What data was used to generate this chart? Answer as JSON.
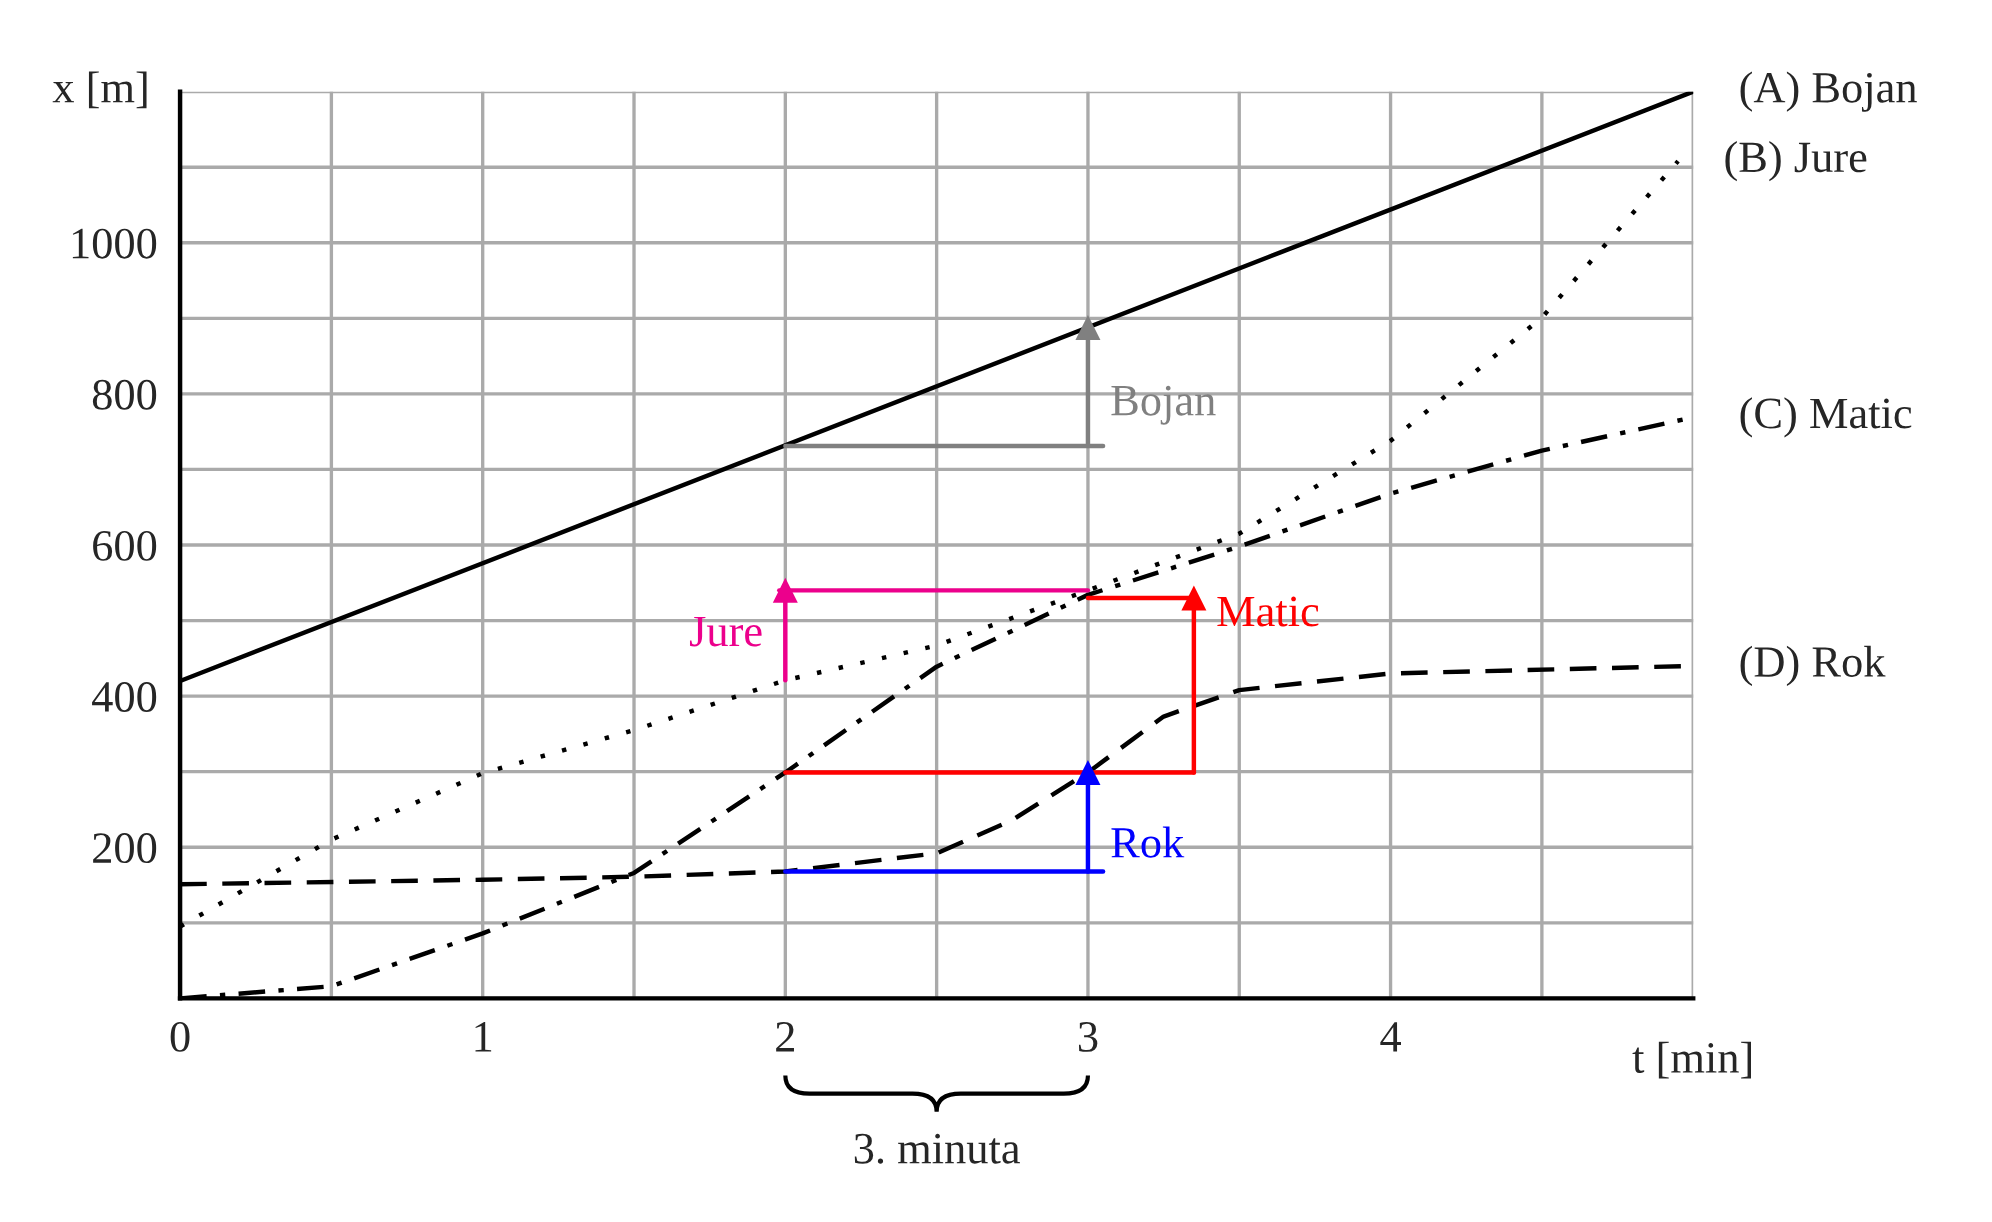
{
  "chart_data": {
    "type": "line",
    "xlabel": "t [min]",
    "ylabel": "x [m]",
    "xlim": [
      0,
      5
    ],
    "ylim": [
      0,
      1200
    ],
    "xticks": [
      0,
      {
        "value": 0.5,
        "label": null
      },
      1,
      {
        "value": 1.5,
        "label": null
      },
      2,
      {
        "value": 2.5,
        "label": null
      },
      3,
      {
        "value": 3.5,
        "label": null
      },
      4,
      {
        "value": 4.5,
        "label": null
      },
      {
        "value": 5,
        "label": null
      }
    ],
    "yticks": [
      {
        "value": 0,
        "label": null
      },
      {
        "value": 100,
        "label": null
      },
      200,
      {
        "value": 300,
        "label": null
      },
      400,
      {
        "value": 500,
        "label": null
      },
      600,
      {
        "value": 700,
        "label": null
      },
      800,
      {
        "value": 900,
        "label": null
      },
      1000,
      {
        "value": 1100,
        "label": null
      },
      {
        "value": 1200,
        "label": null
      }
    ],
    "grid": true,
    "legend": false,
    "series": [
      {
        "name": "(A) Bojan",
        "color": "#000000",
        "line_style": "solid",
        "x": [
          0,
          5
        ],
        "values": [
          420,
          1200
        ]
      },
      {
        "name": "(B) Jure",
        "color": "#000000",
        "line_style": "dotted",
        "x": [
          0,
          0.5,
          1,
          1.5,
          2,
          2.5,
          3,
          3.5,
          4,
          4.5,
          4.95
        ],
        "values": [
          95,
          210,
          298,
          355,
          421,
          467,
          540,
          615,
          738,
          901,
          1108
        ]
      },
      {
        "name": "(C) Matic",
        "color": "#000000",
        "line_style": "dashdot",
        "x": [
          0,
          0.5,
          1,
          1.5,
          2,
          2.5,
          3,
          3.5,
          4,
          4.5,
          5
        ],
        "values": [
          0,
          16,
          86,
          166,
          299,
          439,
          534,
          598,
          668,
          725,
          769
        ]
      },
      {
        "name": "(D) Rok",
        "color": "#000000",
        "line_style": "dashed",
        "x": [
          0,
          1,
          1.5,
          2,
          2.5,
          2.75,
          3,
          3.25,
          3.5,
          4,
          5
        ],
        "values": [
          151,
          157,
          161,
          168,
          192,
          236,
          299,
          373,
          408,
          430,
          440
        ]
      },
      {
        "color": "#808080",
        "line_style": "solid",
        "x": [
          2,
          3.05
        ],
        "values": [
          731,
          731
        ]
      },
      {
        "color": "#808080",
        "line_style": "solid",
        "marker": "triangle",
        "x": [
          3,
          3
        ],
        "values": [
          731,
          888
        ]
      },
      {
        "color": "#ec008c",
        "line_style": "solid",
        "x": [
          1.98,
          3
        ],
        "values": [
          540,
          540
        ]
      },
      {
        "color": "#ec008c",
        "line_style": "solid",
        "marker": "triangle",
        "x": [
          2,
          2
        ],
        "values": [
          421,
          540
        ]
      },
      {
        "color": "#ff0000",
        "line_style": "solid",
        "x": [
          2,
          3.35
        ],
        "values": [
          299,
          299
        ]
      },
      {
        "color": "#ff0000",
        "line_style": "solid",
        "marker": "triangle",
        "x": [
          3.35,
          3.35
        ],
        "values": [
          299,
          530
        ]
      },
      {
        "color": "#ff0000",
        "line_style": "solid",
        "x": [
          3,
          3.35
        ],
        "values": [
          530,
          530
        ]
      },
      {
        "color": "#0000ff",
        "line_style": "solid",
        "x": [
          2,
          3.05
        ],
        "values": [
          168,
          168
        ]
      },
      {
        "color": "#0000ff",
        "line_style": "solid",
        "marker": "triangle",
        "x": [
          3,
          3
        ],
        "values": [
          168,
          299
        ]
      }
    ],
    "annotations": [
      "Bojan",
      "Jure",
      "Matic",
      "Rok",
      "3. minuta"
    ]
  }
}
